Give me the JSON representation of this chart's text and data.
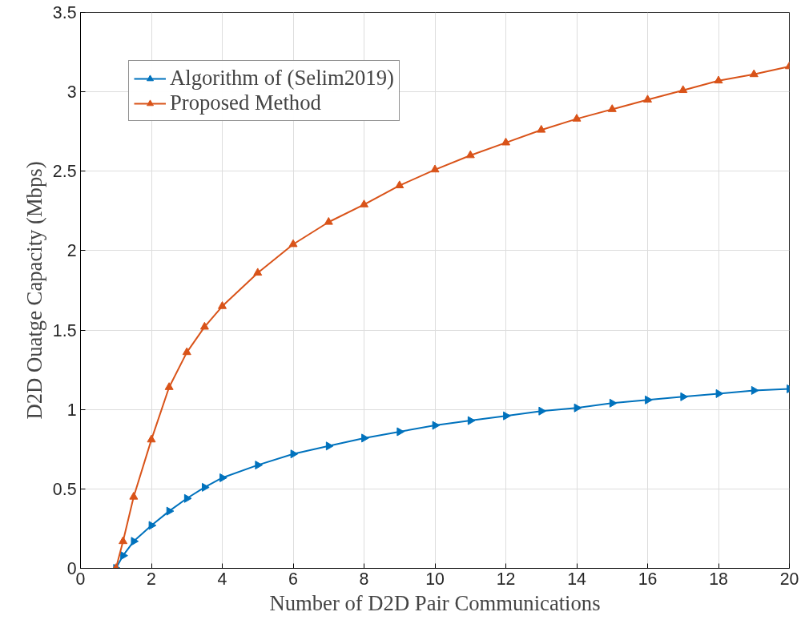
{
  "chart_data": {
    "type": "line",
    "xlabel": "Number of D2D Pair Communications",
    "ylabel": "D2D Ouatge Capacity (Mbps)",
    "x": [
      1,
      1.2,
      1.5,
      2,
      2.5,
      3,
      3.5,
      4,
      5,
      6,
      7,
      8,
      9,
      10,
      11,
      12,
      13,
      14,
      15,
      16,
      17,
      18,
      19,
      20
    ],
    "series": [
      {
        "name": "Algorithm of (Selim2019)",
        "color": "#0072bd",
        "marker": "triangle-right",
        "values": [
          0,
          0.08,
          0.17,
          0.27,
          0.36,
          0.44,
          0.51,
          0.57,
          0.65,
          0.72,
          0.77,
          0.82,
          0.86,
          0.9,
          0.93,
          0.96,
          0.99,
          1.01,
          1.04,
          1.06,
          1.08,
          1.1,
          1.12,
          1.13
        ]
      },
      {
        "name": "Proposed Method",
        "color": "#d95319",
        "marker": "triangle",
        "values": [
          0,
          0.17,
          0.45,
          0.81,
          1.14,
          1.36,
          1.52,
          1.65,
          1.86,
          2.04,
          2.18,
          2.29,
          2.41,
          2.51,
          2.6,
          2.68,
          2.76,
          2.83,
          2.89,
          2.95,
          3.01,
          3.07,
          3.11,
          3.16
        ]
      }
    ],
    "xlim": [
      0,
      20
    ],
    "xticks": [
      0,
      2,
      4,
      6,
      8,
      10,
      12,
      14,
      16,
      18,
      20
    ],
    "ylim": [
      0,
      3.5
    ],
    "yticks": [
      0,
      0.5,
      1,
      1.5,
      2,
      2.5,
      3,
      3.5
    ],
    "grid": true,
    "legend": "top left",
    "line_style": "solid"
  }
}
